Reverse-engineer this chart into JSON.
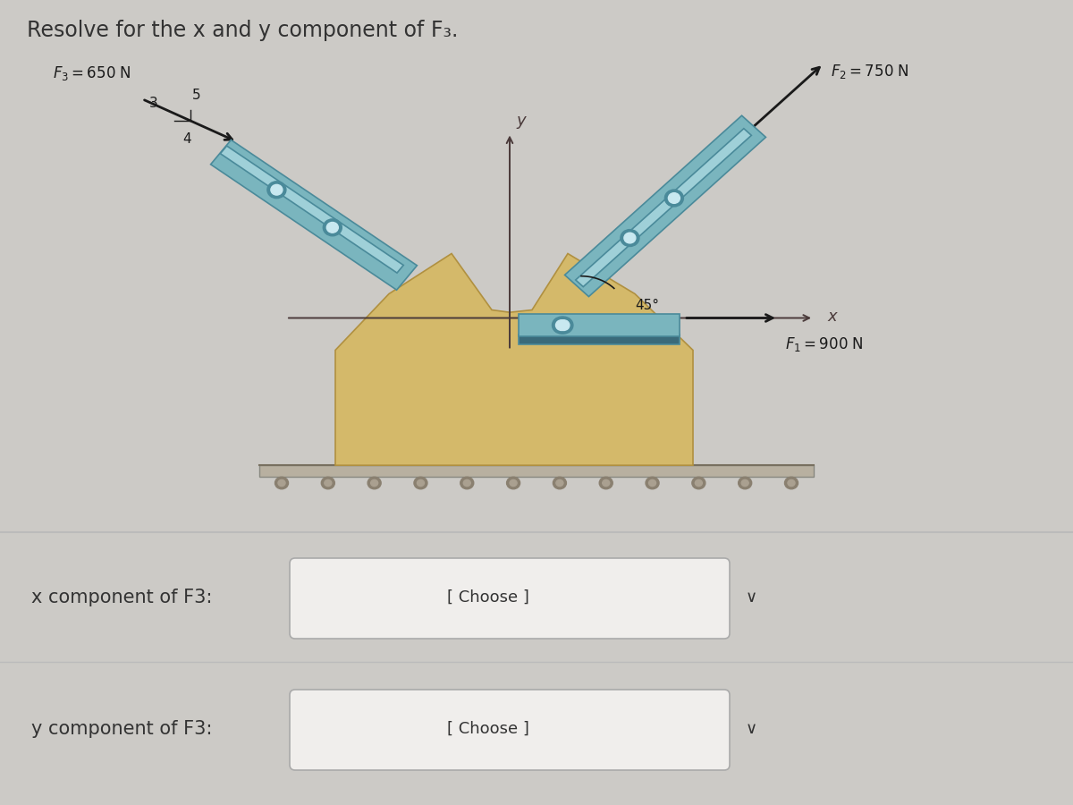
{
  "title": "Resolve for the x and y component of F₃.",
  "bg_color": "#cccac6",
  "body_color": "#d4b96a",
  "body_edge": "#b09040",
  "rail_color": "#7ab5be",
  "rail_light": "#9fd0d8",
  "rail_dark": "#4a8a9a",
  "rail_shadow": "#3a6a7a",
  "base_plate_color": "#b8b0a0",
  "base_plate_edge": "#888880",
  "ground_color": "#c0bab0",
  "F1_label": "$F_1 = 900$ N",
  "F2_label": "$F_2 = 750$ N",
  "F3_label": "$F_3 = 650$ N",
  "x_label": "x",
  "y_label": "y",
  "angle_label": "45°",
  "ratio_3": "3",
  "ratio_4": "4",
  "ratio_5": "5",
  "x_comp_label": "x component of F3:",
  "y_comp_label": "y component of F3:",
  "choose_x": "[ Choose ]",
  "choose_y": "[ Choose ]",
  "box_color": "#f0eeec",
  "box_border": "#aaaaaa",
  "divider_color": "#bbbbbb",
  "text_color": "#333333",
  "bottom_bg": "#d0cdc9",
  "arrow_color": "#1a1a1a",
  "axis_color": "#4a3a3a"
}
